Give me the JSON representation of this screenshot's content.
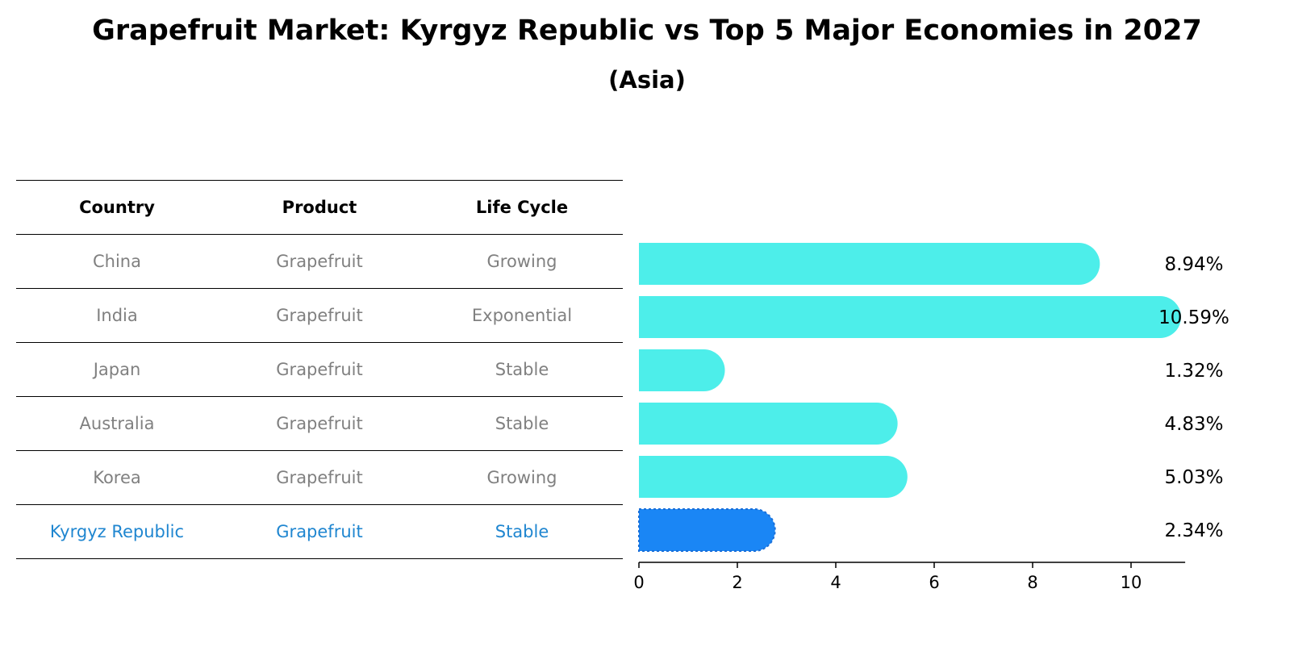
{
  "title": "Grapefruit Market: Kyrgyz Republic vs Top 5 Major Economies in 2027",
  "subtitle": "(Asia)",
  "table": {
    "headers": [
      "Country",
      "Product",
      "Life Cycle"
    ],
    "rows": [
      {
        "country": "China",
        "product": "Grapefruit",
        "life_cycle": "Growing"
      },
      {
        "country": "India",
        "product": "Grapefruit",
        "life_cycle": "Exponential"
      },
      {
        "country": "Japan",
        "product": "Grapefruit",
        "life_cycle": "Stable"
      },
      {
        "country": "Australia",
        "product": "Grapefruit",
        "life_cycle": "Stable"
      },
      {
        "country": "Korea",
        "product": "Grapefruit",
        "life_cycle": "Growing"
      },
      {
        "country": "Kyrgyz Republic",
        "product": "Grapefruit",
        "life_cycle": "Stable"
      }
    ]
  },
  "chart_data": {
    "type": "bar",
    "orientation": "horizontal",
    "categories": [
      "China",
      "India",
      "Japan",
      "Australia",
      "Korea",
      "Kyrgyz Republic"
    ],
    "values": [
      8.94,
      10.59,
      1.32,
      4.83,
      5.03,
      2.34
    ],
    "value_labels": [
      "8.94%",
      "10.59%",
      "1.32%",
      "4.83%",
      "5.03%",
      "2.34%"
    ],
    "highlight": "Kyrgyz Republic",
    "xticks": [
      0,
      2,
      4,
      6,
      8,
      10
    ],
    "xlim": [
      0,
      11.1
    ],
    "colors": {
      "default": "#4deeea",
      "highlight": "#1a86f5",
      "highlight_text": "#1f86d0",
      "muted_text": "#808080"
    }
  }
}
